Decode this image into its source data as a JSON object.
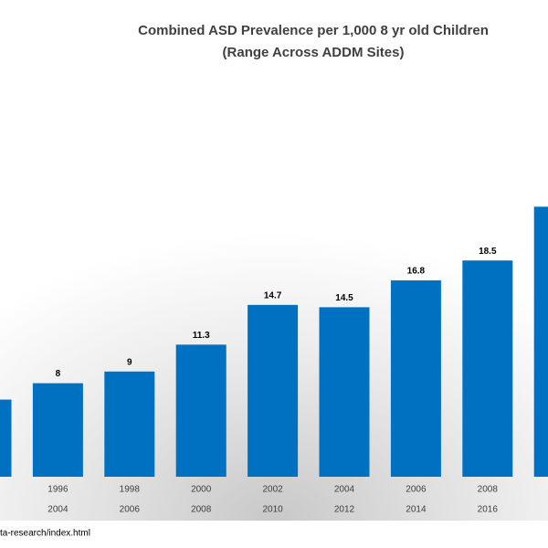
{
  "chart_data": {
    "type": "bar",
    "title": "Combined ASD Prevalence per 1,000 8 yr old Children",
    "subtitle": "(Range Across ADDM Sites)",
    "categories": [
      null,
      [
        "1996",
        "2004"
      ],
      [
        "1998",
        "2006"
      ],
      [
        "2000",
        "2008"
      ],
      [
        "2002",
        "2010"
      ],
      [
        "2004",
        "2012"
      ],
      [
        "2006",
        "2014"
      ],
      [
        "2008",
        "2016"
      ],
      null
    ],
    "values": [
      6.6,
      8,
      9,
      11.3,
      14.7,
      14.5,
      16.8,
      18.5,
      23.1
    ],
    "color": "#0070c0",
    "source": "ta-research/index.html"
  }
}
